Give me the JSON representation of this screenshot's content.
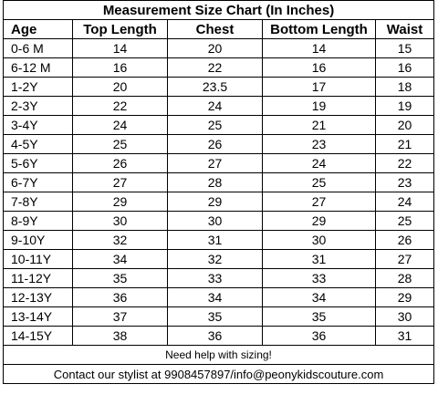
{
  "title": "Measurement Size Chart (In Inches)",
  "columns": [
    "Age",
    "Top Length",
    "Chest",
    "Bottom Length",
    "Waist"
  ],
  "rows": [
    {
      "age": "0-6 M",
      "top_length": "14",
      "chest": "20",
      "bottom_length": "14",
      "waist": "15"
    },
    {
      "age": "6-12 M",
      "top_length": "16",
      "chest": "22",
      "bottom_length": "16",
      "waist": "16"
    },
    {
      "age": "1-2Y",
      "top_length": "20",
      "chest": "23.5",
      "bottom_length": "17",
      "waist": "18"
    },
    {
      "age": "2-3Y",
      "top_length": "22",
      "chest": "24",
      "bottom_length": "19",
      "waist": "19"
    },
    {
      "age": "3-4Y",
      "top_length": "24",
      "chest": "25",
      "bottom_length": "21",
      "waist": "20"
    },
    {
      "age": "4-5Y",
      "top_length": "25",
      "chest": "26",
      "bottom_length": "23",
      "waist": "21"
    },
    {
      "age": "5-6Y",
      "top_length": "26",
      "chest": "27",
      "bottom_length": "24",
      "waist": "22"
    },
    {
      "age": "6-7Y",
      "top_length": "27",
      "chest": "28",
      "bottom_length": "25",
      "waist": "23"
    },
    {
      "age": "7-8Y",
      "top_length": "29",
      "chest": "29",
      "bottom_length": "27",
      "waist": "24"
    },
    {
      "age": "8-9Y",
      "top_length": "30",
      "chest": "30",
      "bottom_length": "29",
      "waist": "25"
    },
    {
      "age": "9-10Y",
      "top_length": "32",
      "chest": "31",
      "bottom_length": "30",
      "waist": "26"
    },
    {
      "age": "10-11Y",
      "top_length": "34",
      "chest": "32",
      "bottom_length": "31",
      "waist": "27"
    },
    {
      "age": "11-12Y",
      "top_length": "35",
      "chest": "33",
      "bottom_length": "33",
      "waist": "28"
    },
    {
      "age": "12-13Y",
      "top_length": "36",
      "chest": "34",
      "bottom_length": "34",
      "waist": "29"
    },
    {
      "age": "13-14Y",
      "top_length": "37",
      "chest": "35",
      "bottom_length": "35",
      "waist": "30"
    },
    {
      "age": "14-15Y",
      "top_length": "38",
      "chest": "36",
      "bottom_length": "36",
      "waist": "31"
    }
  ],
  "footer": {
    "help": "Need help with sizing!",
    "contact": "Contact our stylist at 9908457897/info@peonykidscouture.com"
  }
}
